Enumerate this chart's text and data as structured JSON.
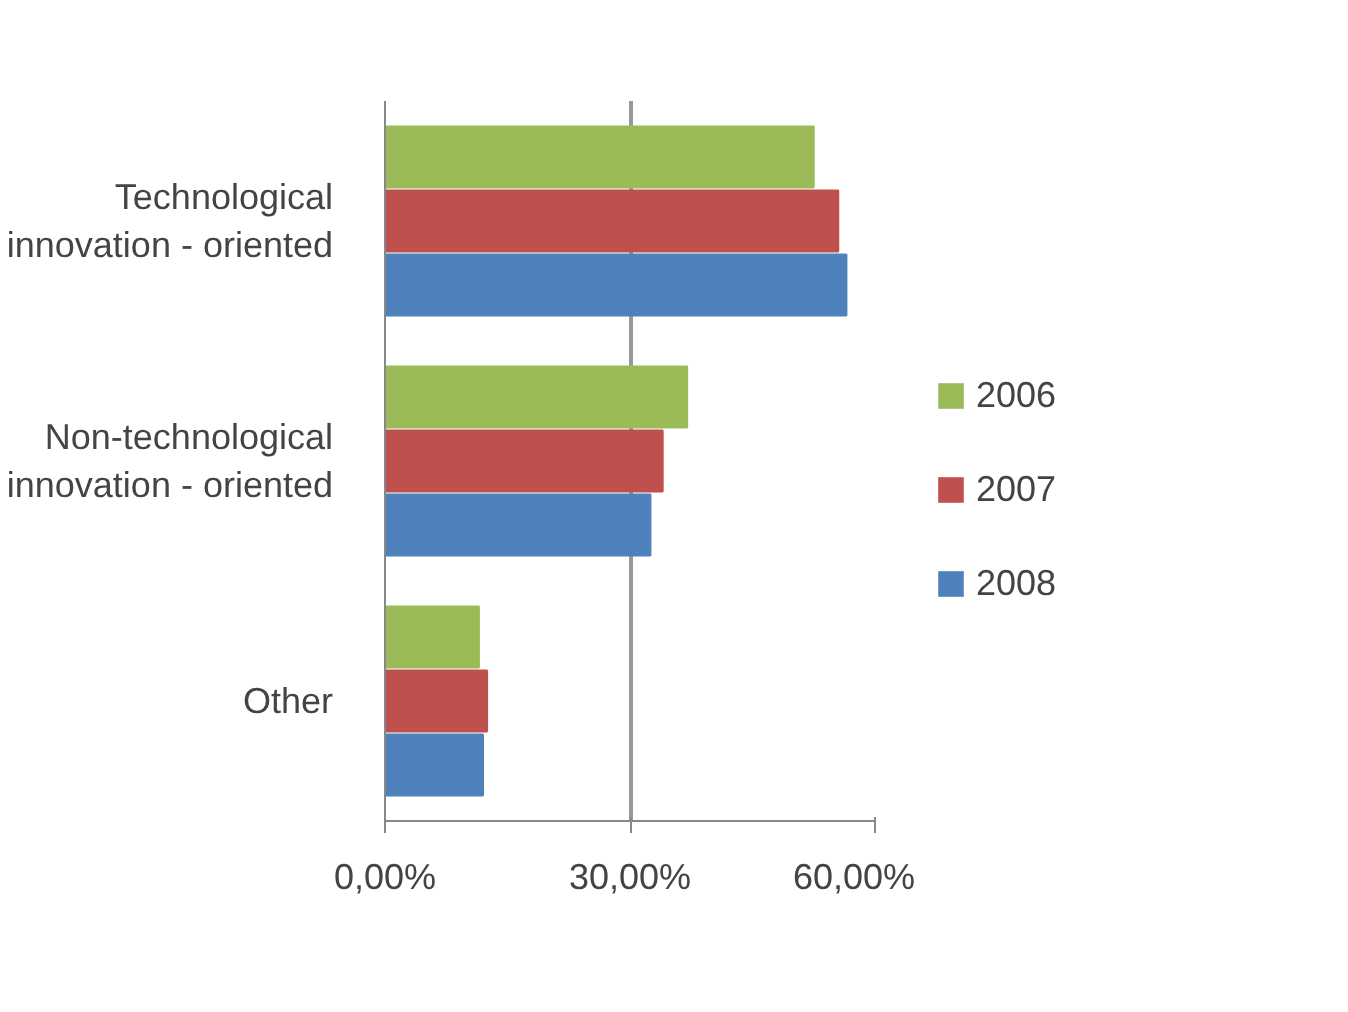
{
  "chart_data": {
    "type": "bar",
    "orientation": "horizontal",
    "categories": [
      "Technological\ninnovation - oriented",
      "Non-technological\ninnovation - oriented",
      "Other"
    ],
    "series": [
      {
        "name": "2006",
        "color": "#9bbb59",
        "values": [
          52.5,
          37,
          11.5
        ]
      },
      {
        "name": "2007",
        "color": "#c0504d",
        "values": [
          55.5,
          34,
          12.5
        ]
      },
      {
        "name": "2008",
        "color": "#4f81bd",
        "values": [
          56.5,
          32.5,
          12
        ]
      }
    ],
    "xlim": [
      0,
      60
    ],
    "xticks": [
      {
        "value": 0,
        "label": "0,00%"
      },
      {
        "value": 30,
        "label": "30,00%"
      },
      {
        "value": 60,
        "label": "60,00%"
      }
    ],
    "grid": "x",
    "legend": "right"
  }
}
